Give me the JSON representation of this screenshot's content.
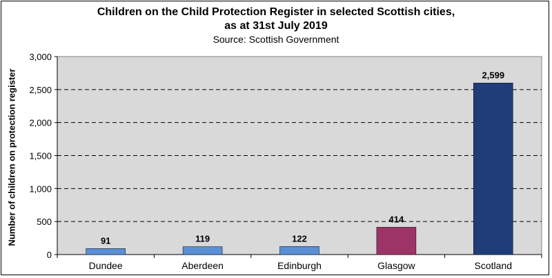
{
  "chart_data": {
    "type": "bar",
    "title_line1": "Children on the Child Protection Register in selected Scottish cities,",
    "title_line2": "as at 31st July 2019",
    "subtitle": "Source: Scottish Government",
    "ylabel": "Number of children on protection register",
    "xlabel": "",
    "categories": [
      "Dundee",
      "Aberdeen",
      "Edinburgh",
      "Glasgow",
      "Scotland"
    ],
    "values": [
      91,
      119,
      122,
      414,
      2599
    ],
    "value_labels": [
      "91",
      "119",
      "122",
      "414",
      "2,599"
    ],
    "bar_colors": [
      "#5b8fd6",
      "#5b8fd6",
      "#5b8fd6",
      "#9c3467",
      "#1f3d78"
    ],
    "ylim": [
      0,
      3000
    ],
    "yticks": [
      0,
      500,
      1000,
      1500,
      2000,
      2500,
      3000
    ],
    "ytick_labels": [
      "0",
      "500",
      "1,000",
      "1,500",
      "2,000",
      "2,500",
      "3,000"
    ],
    "grid": true,
    "plot_background": "#d9d9d9"
  }
}
